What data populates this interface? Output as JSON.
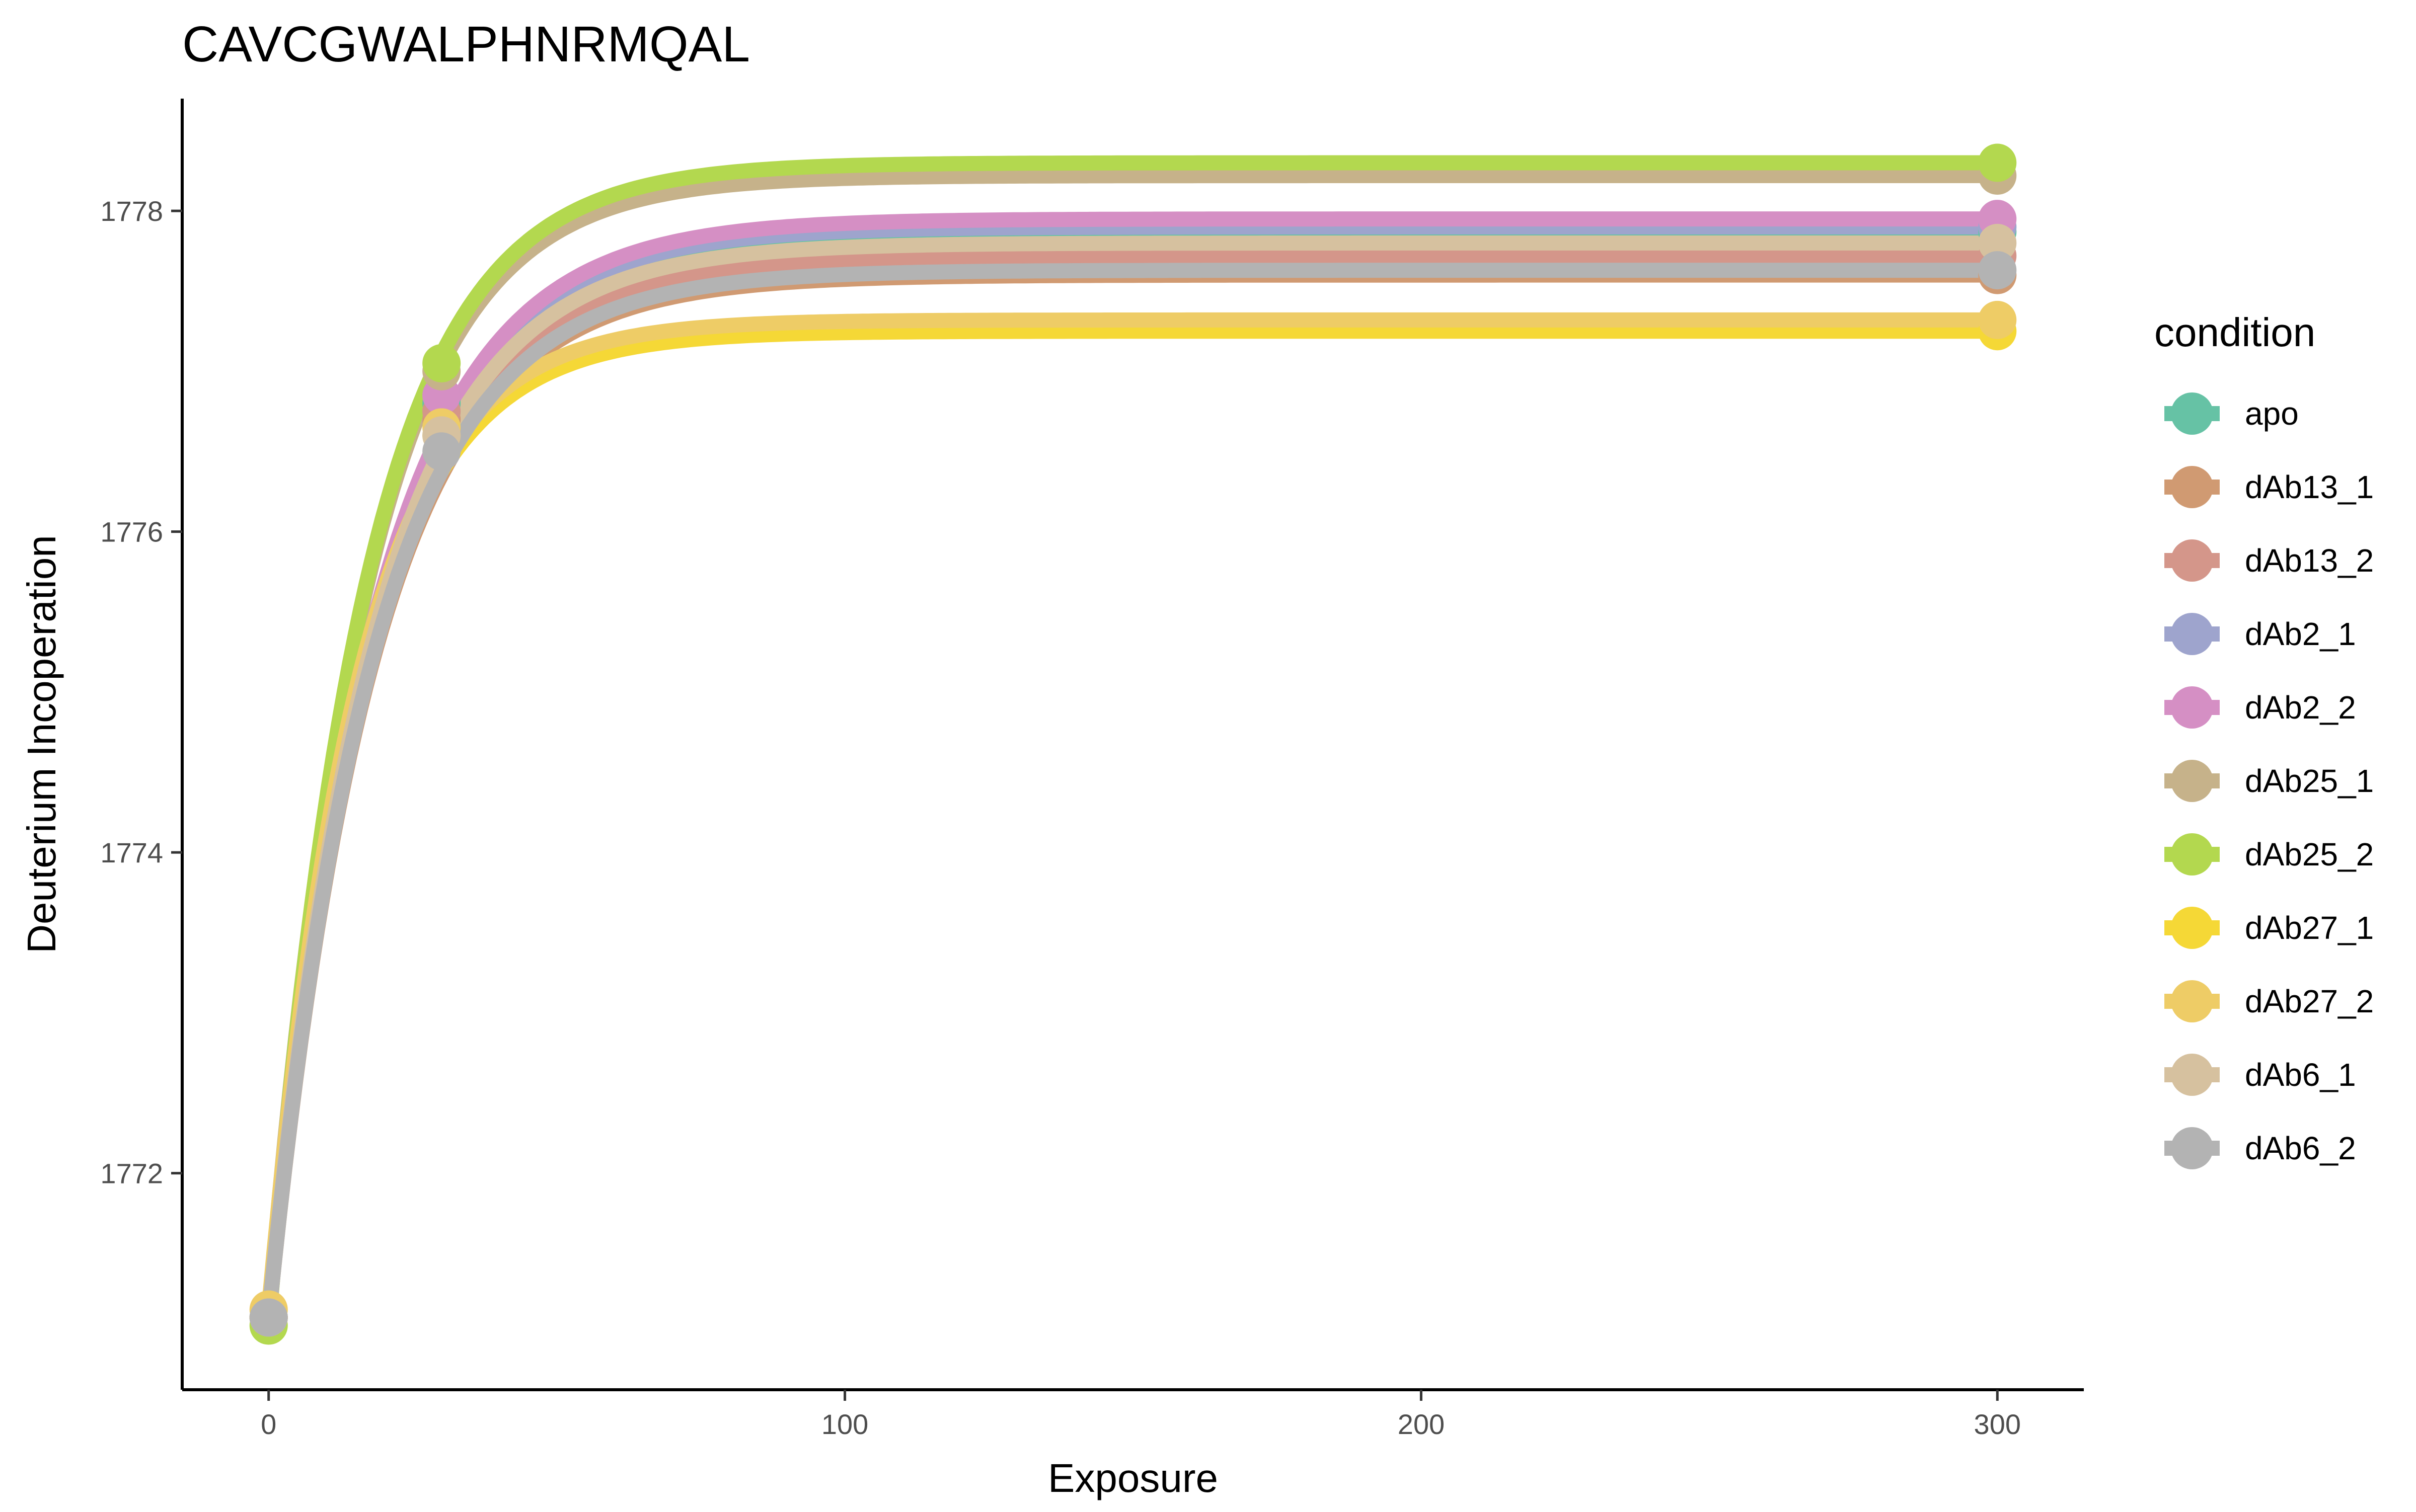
{
  "chart_data": {
    "type": "line",
    "title": "CAVCGWALPHNRMQAL",
    "xlabel": "Exposure",
    "ylabel": "Deuterium Incoperation",
    "xlim": [
      -15,
      315
    ],
    "ylim": [
      1770.65,
      1778.7
    ],
    "x_ticks": [
      0,
      100,
      200,
      300
    ],
    "x_tick_labels": [
      "0",
      "100",
      "200",
      "300"
    ],
    "y_ticks": [
      1772,
      1774,
      1776,
      1778
    ],
    "y_tick_labels": [
      "1772",
      "1774",
      "1776",
      "1778"
    ],
    "grid": false,
    "legend": {
      "title": "condition",
      "position": "right"
    },
    "x": [
      0,
      30,
      300
    ],
    "series": [
      {
        "name": "apo",
        "color": "#66c2a5",
        "values": [
          1771.1,
          1776.8,
          1777.87
        ],
        "plateau": 1777.87,
        "rate": 0.055
      },
      {
        "name": "dAb13_1",
        "color": "#d09a72",
        "values": [
          1771.1,
          1776.7,
          1777.6
        ],
        "plateau": 1777.6,
        "rate": 0.055
      },
      {
        "name": "dAb13_2",
        "color": "#d4968a",
        "values": [
          1771.1,
          1776.75,
          1777.72
        ],
        "plateau": 1777.72,
        "rate": 0.055
      },
      {
        "name": "dAb2_1",
        "color": "#9ea4cd",
        "values": [
          1771.1,
          1776.85,
          1777.9
        ],
        "plateau": 1777.9,
        "rate": 0.055
      },
      {
        "name": "dAb2_2",
        "color": "#d58fc4",
        "values": [
          1771.1,
          1776.85,
          1777.95
        ],
        "plateau": 1777.95,
        "rate": 0.055
      },
      {
        "name": "dAb25_1",
        "color": "#c6b28a",
        "values": [
          1771.1,
          1777.0,
          1778.22
        ],
        "plateau": 1778.22,
        "rate": 0.06
      },
      {
        "name": "dAb25_2",
        "color": "#b3d84f",
        "values": [
          1771.05,
          1777.05,
          1778.3
        ],
        "plateau": 1778.3,
        "rate": 0.06
      },
      {
        "name": "dAb27_1",
        "color": "#f5d836",
        "values": [
          1771.1,
          1776.6,
          1777.25
        ],
        "plateau": 1777.25,
        "rate": 0.065
      },
      {
        "name": "dAb27_2",
        "color": "#eecc66",
        "values": [
          1771.15,
          1776.65,
          1777.32
        ],
        "plateau": 1777.32,
        "rate": 0.065
      },
      {
        "name": "dAb6_1",
        "color": "#d6c19f",
        "values": [
          1771.1,
          1776.6,
          1777.8
        ],
        "plateau": 1777.8,
        "rate": 0.055
      },
      {
        "name": "dAb6_2",
        "color": "#b3b3b3",
        "values": [
          1771.1,
          1776.5,
          1777.63
        ],
        "plateau": 1777.63,
        "rate": 0.055
      }
    ]
  }
}
